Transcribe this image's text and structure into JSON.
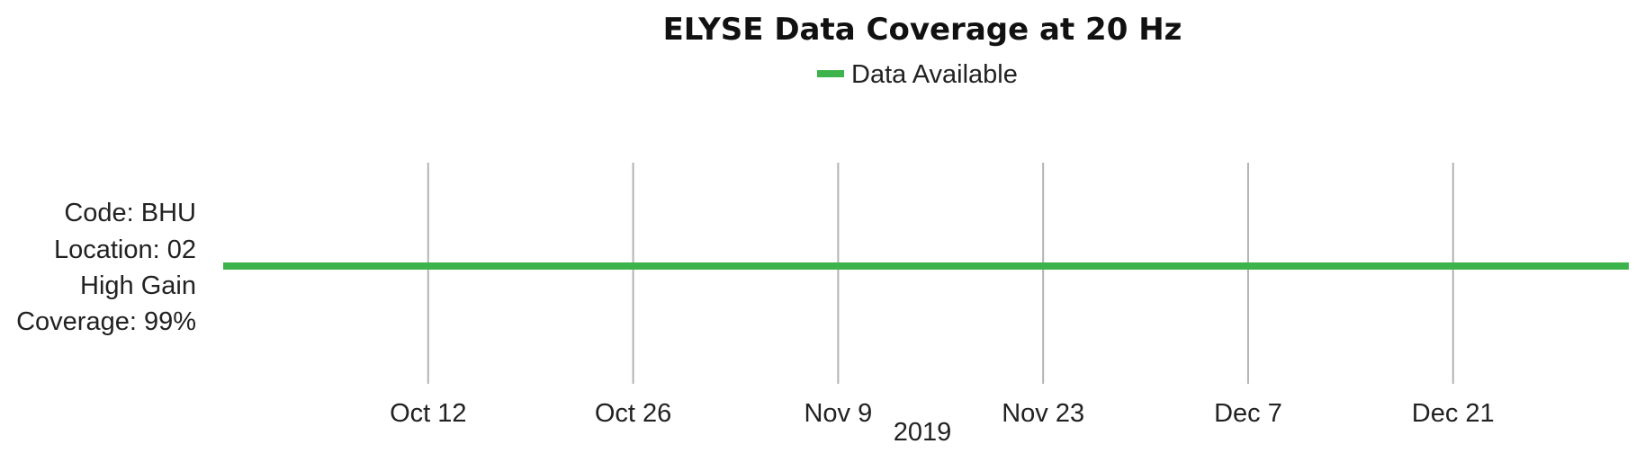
{
  "chart_data": {
    "type": "line",
    "title": "ELYSE Data Coverage at 20 Hz",
    "xlabel": "2019",
    "legend": {
      "position": "top-center",
      "entries": [
        {
          "name": "Data Available",
          "color": "#3cb44b"
        }
      ]
    },
    "x_range": [
      "2019-09-28",
      "2020-01-02"
    ],
    "x_ticks": [
      {
        "date": "2019-10-12",
        "label": "Oct 12"
      },
      {
        "date": "2019-10-26",
        "label": "Oct 26"
      },
      {
        "date": "2019-11-09",
        "label": "Nov 9"
      },
      {
        "date": "2019-11-23",
        "label": "Nov 23"
      },
      {
        "date": "2019-12-07",
        "label": "Dec 7"
      },
      {
        "date": "2019-12-21",
        "label": "Dec 21"
      }
    ],
    "grid": {
      "vertical": true,
      "horizontal": false
    },
    "series": [
      {
        "name": "Data Available",
        "color": "#3cb44b",
        "row_label": [
          "Code: BHU",
          "Location: 02",
          "High Gain",
          "Coverage: 99%"
        ],
        "segments": [
          {
            "start": "2019-09-28",
            "end": "2020-01-02"
          }
        ]
      }
    ]
  }
}
